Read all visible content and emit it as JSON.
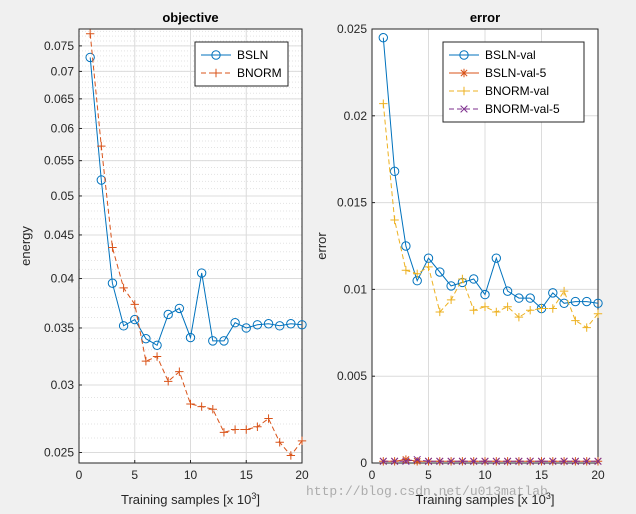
{
  "chart_data": [
    {
      "type": "line",
      "title": "objective",
      "xlabel": "Training samples [x 10",
      "xlabel_sup": "3",
      "xlabel_end": "]",
      "ylabel": "energy",
      "xlim": [
        0,
        20
      ],
      "ylim": [
        0.0243,
        0.0785
      ],
      "yscale": "log",
      "xticks": [
        0,
        5,
        10,
        15,
        20
      ],
      "yticks": [
        0.025,
        0.03,
        0.035,
        0.04,
        0.045,
        0.05,
        0.055,
        0.06,
        0.065,
        0.07,
        0.075
      ],
      "ytick_labels": [
        "0.025",
        "0.03",
        "0.035",
        "0.04",
        "0.045",
        "0.05",
        "0.055",
        "0.06",
        "0.065",
        "0.07",
        "0.075"
      ],
      "grid": true,
      "legend_position": "top-right",
      "series": [
        {
          "name": "BSLN",
          "color": "#0072bd",
          "marker": "circle",
          "linestyle": "solid",
          "x": [
            1,
            2,
            3,
            4,
            5,
            6,
            7,
            8,
            9,
            10,
            11,
            12,
            13,
            14,
            15,
            16,
            17,
            18,
            19,
            20
          ],
          "values": [
            0.0727,
            0.0522,
            0.0395,
            0.0352,
            0.0358,
            0.034,
            0.0334,
            0.0363,
            0.0369,
            0.0341,
            0.0406,
            0.0338,
            0.0338,
            0.0355,
            0.035,
            0.0353,
            0.0354,
            0.0352,
            0.0354,
            0.0353
          ]
        },
        {
          "name": "BNORM",
          "color": "#d95319",
          "marker": "plus",
          "linestyle": "dashed",
          "x": [
            1,
            2,
            3,
            4,
            5,
            6,
            7,
            8,
            9,
            10,
            11,
            12,
            13,
            14,
            15,
            16,
            17,
            18,
            19,
            20
          ],
          "values": [
            0.0775,
            0.0572,
            0.0435,
            0.039,
            0.0373,
            0.032,
            0.0324,
            0.0303,
            0.0311,
            0.0285,
            0.0283,
            0.0281,
            0.0264,
            0.0266,
            0.0266,
            0.0268,
            0.0274,
            0.0257,
            0.0248,
            0.0258
          ]
        }
      ]
    },
    {
      "type": "line",
      "title": "error",
      "xlabel": "Training samples [x 10",
      "xlabel_sup": "3",
      "xlabel_end": "]",
      "ylabel": "error",
      "xlim": [
        0,
        20
      ],
      "ylim": [
        0,
        0.025
      ],
      "yscale": "linear",
      "xticks": [
        0,
        5,
        10,
        15,
        20
      ],
      "yticks": [
        0,
        0.005,
        0.01,
        0.015,
        0.02,
        0.025
      ],
      "ytick_labels": [
        "0",
        "0.005",
        "0.01",
        "0.015",
        "0.02",
        "0.025"
      ],
      "grid": true,
      "legend_position": "top-right",
      "series": [
        {
          "name": "BSLN-val",
          "color": "#0072bd",
          "marker": "circle",
          "linestyle": "solid",
          "x": [
            1,
            2,
            3,
            4,
            5,
            6,
            7,
            8,
            9,
            10,
            11,
            12,
            13,
            14,
            15,
            16,
            17,
            18,
            19,
            20
          ],
          "values": [
            0.0245,
            0.0168,
            0.0125,
            0.0105,
            0.0118,
            0.011,
            0.0102,
            0.0104,
            0.0106,
            0.0097,
            0.0118,
            0.0099,
            0.0095,
            0.0095,
            0.0089,
            0.0098,
            0.0092,
            0.0093,
            0.0093,
            0.0092
          ]
        },
        {
          "name": "BSLN-val-5",
          "color": "#d95319",
          "marker": "star",
          "linestyle": "solid",
          "x": [
            1,
            2,
            3,
            4,
            5,
            6,
            7,
            8,
            9,
            10,
            11,
            12,
            13,
            14,
            15,
            16,
            17,
            18,
            19,
            20
          ],
          "values": [
            0.0001,
            0.0001,
            0.0002,
            0.0001,
            0.0001,
            0.0001,
            0.0001,
            0.0001,
            0.0001,
            0.0001,
            0.0001,
            0.0001,
            0.0001,
            0.0001,
            0.0001,
            0.0001,
            0.0001,
            0.0001,
            0.0001,
            0.0001
          ]
        },
        {
          "name": "BNORM-val",
          "color": "#edb120",
          "marker": "plus",
          "linestyle": "dashed",
          "x": [
            1,
            2,
            3,
            4,
            5,
            6,
            7,
            8,
            9,
            10,
            11,
            12,
            13,
            14,
            15,
            16,
            17,
            18,
            19,
            20
          ],
          "values": [
            0.0207,
            0.014,
            0.0111,
            0.0109,
            0.0113,
            0.0087,
            0.0094,
            0.0106,
            0.0088,
            0.009,
            0.0087,
            0.009,
            0.0084,
            0.0088,
            0.0089,
            0.0089,
            0.0099,
            0.0082,
            0.0078,
            0.0086
          ]
        },
        {
          "name": "BNORM-val-5",
          "color": "#7e2f8e",
          "marker": "x",
          "linestyle": "dashed",
          "x": [
            1,
            2,
            3,
            4,
            5,
            6,
            7,
            8,
            9,
            10,
            11,
            12,
            13,
            14,
            15,
            16,
            17,
            18,
            19,
            20
          ],
          "values": [
            0.0001,
            0.0001,
            0.0001,
            0.0002,
            0.0001,
            0.0001,
            0.0001,
            0.0001,
            0.0001,
            0.0001,
            0.0001,
            0.0001,
            0.0001,
            0.0001,
            0.0001,
            0.0001,
            0.0001,
            0.0001,
            0.0001,
            0.0001
          ]
        }
      ]
    }
  ],
  "watermark": "http://blog.csdn.net/u013matlab"
}
